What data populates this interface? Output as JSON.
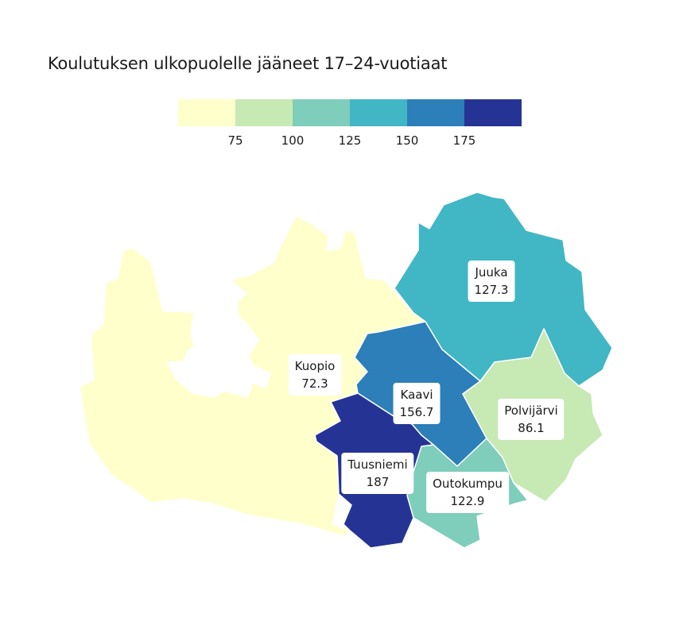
{
  "title": "Koulutuksen ulkopuolelle jääneet 17–24-vuotiaat",
  "legend": {
    "colors": [
      "#ffffcc",
      "#c7e9b4",
      "#7fcdbb",
      "#41b6c4",
      "#2c7fb8",
      "#253494"
    ],
    "ticks": [
      "75",
      "100",
      "125",
      "150",
      "175"
    ]
  },
  "regions": [
    {
      "name": "Kuopio",
      "value": "72.3",
      "color": "#ffffcc"
    },
    {
      "name": "Juuka",
      "value": "127.3",
      "color": "#41b6c4"
    },
    {
      "name": "Kaavi",
      "value": "156.7",
      "color": "#2c7fb8"
    },
    {
      "name": "Polvijärvi",
      "value": "86.1",
      "color": "#c7e9b4"
    },
    {
      "name": "Tuusniemi",
      "value": "187",
      "color": "#253494"
    },
    {
      "name": "Outokumpu",
      "value": "122.9",
      "color": "#7fcdbb"
    }
  ]
}
